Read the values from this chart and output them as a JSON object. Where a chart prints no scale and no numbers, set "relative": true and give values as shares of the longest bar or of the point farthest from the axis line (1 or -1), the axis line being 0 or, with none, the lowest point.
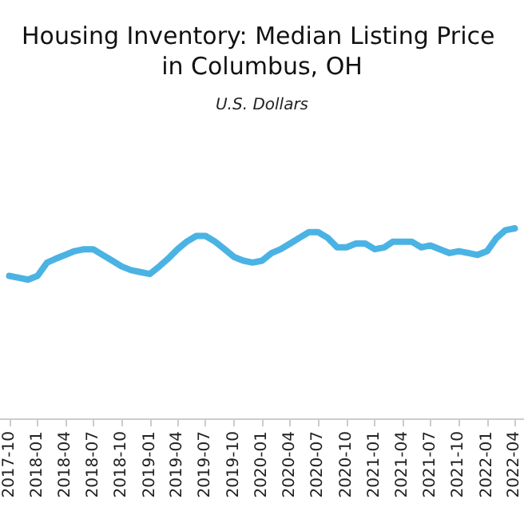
{
  "chart_data": {
    "type": "line",
    "title": "Housing Inventory: Median Listing Price in Columbus, OH",
    "subtitle": "U.S. Dollars",
    "relative": true,
    "x": [
      "2017-10",
      "2017-11",
      "2017-12",
      "2018-01",
      "2018-02",
      "2018-03",
      "2018-04",
      "2018-05",
      "2018-06",
      "2018-07",
      "2018-08",
      "2018-09",
      "2018-10",
      "2018-11",
      "2018-12",
      "2019-01",
      "2019-02",
      "2019-03",
      "2019-04",
      "2019-05",
      "2019-06",
      "2019-07",
      "2019-08",
      "2019-09",
      "2019-10",
      "2019-11",
      "2019-12",
      "2020-01",
      "2020-02",
      "2020-03",
      "2020-04",
      "2020-05",
      "2020-06",
      "2020-07",
      "2020-08",
      "2020-09",
      "2020-10",
      "2020-11",
      "2020-12",
      "2021-01",
      "2021-02",
      "2021-03",
      "2021-04",
      "2021-05",
      "2021-06",
      "2021-07",
      "2021-08",
      "2021-09",
      "2021-10",
      "2021-11",
      "2021-12",
      "2022-01",
      "2022-02",
      "2022-03",
      "2022-04"
    ],
    "series": [
      {
        "color": "#4bb3e4",
        "values": [
          0.75,
          0.74,
          0.73,
          0.75,
          0.82,
          0.84,
          0.86,
          0.88,
          0.89,
          0.89,
          0.86,
          0.83,
          0.8,
          0.78,
          0.77,
          0.76,
          0.8,
          0.84,
          0.89,
          0.93,
          0.96,
          0.96,
          0.93,
          0.89,
          0.85,
          0.83,
          0.82,
          0.83,
          0.87,
          0.89,
          0.92,
          0.95,
          0.98,
          0.98,
          0.95,
          0.9,
          0.9,
          0.92,
          0.92,
          0.89,
          0.9,
          0.93,
          0.93,
          0.93,
          0.9,
          0.91,
          0.89,
          0.87,
          0.88,
          0.87,
          0.86,
          0.88,
          0.95,
          0.99,
          1
        ]
      }
    ],
    "xlim": [
      "2017-09",
      "2022-05"
    ],
    "xticks": [
      "2017-10",
      "2018-01",
      "2018-04",
      "2018-07",
      "2018-10",
      "2019-01",
      "2019-04",
      "2019-07",
      "2019-10",
      "2020-01",
      "2020-04",
      "2020-07",
      "2020-10",
      "2021-01",
      "2021-04",
      "2021-07",
      "2021-10",
      "2022-01",
      "2022-04"
    ],
    "grid": false,
    "marker": "none",
    "line_style": "solid"
  }
}
